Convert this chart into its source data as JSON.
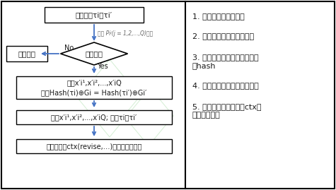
{
  "bg_color": "#ffffff",
  "border_color": "#000000",
  "flow_arrow_color": "#4472c4",
  "box_bg": "#ffffff",
  "box_border": "#000000",
  "text_color": "#1a1a1a",
  "gray_text": "#555555",
  "watermark_color": "#d8f0d8",
  "title_box": "请求修改τi为τi’",
  "diamond_label": "请求合法",
  "diamond_label_top": "矿工 Piʲ(j = 1,2,...,Q)验证",
  "reject_box": "请求驳回",
  "calc_box_line1": "计算x’i¹,x’i²,...,x’iᵐ",
  "calc_box_line2": "使得Hash(τi)⊕Gi = Hash(τi’)⊕Gi’",
  "update_box": "更新x’i¹,x’i²,...,x’iᵐ; 修改τi为τi’",
  "done_box": "修改完成，ctx(revise,…)生成，全网验证",
  "no_label": "No",
  "yes_label": "Yes",
  "right_line1": "1. 向全网发送修改请求",
  "right_line2": "2. 排名靠前的矿工审核请求",
  "right_line3a": "3. 审核通过，计算新的交易子",
  "right_line3b": "块hash",
  "right_line4": "4. 通过公式计算出新的随机数",
  "right_line5a": "5. 将本次修改过程信息ctx交",
  "right_line5b": "易进入交易池"
}
